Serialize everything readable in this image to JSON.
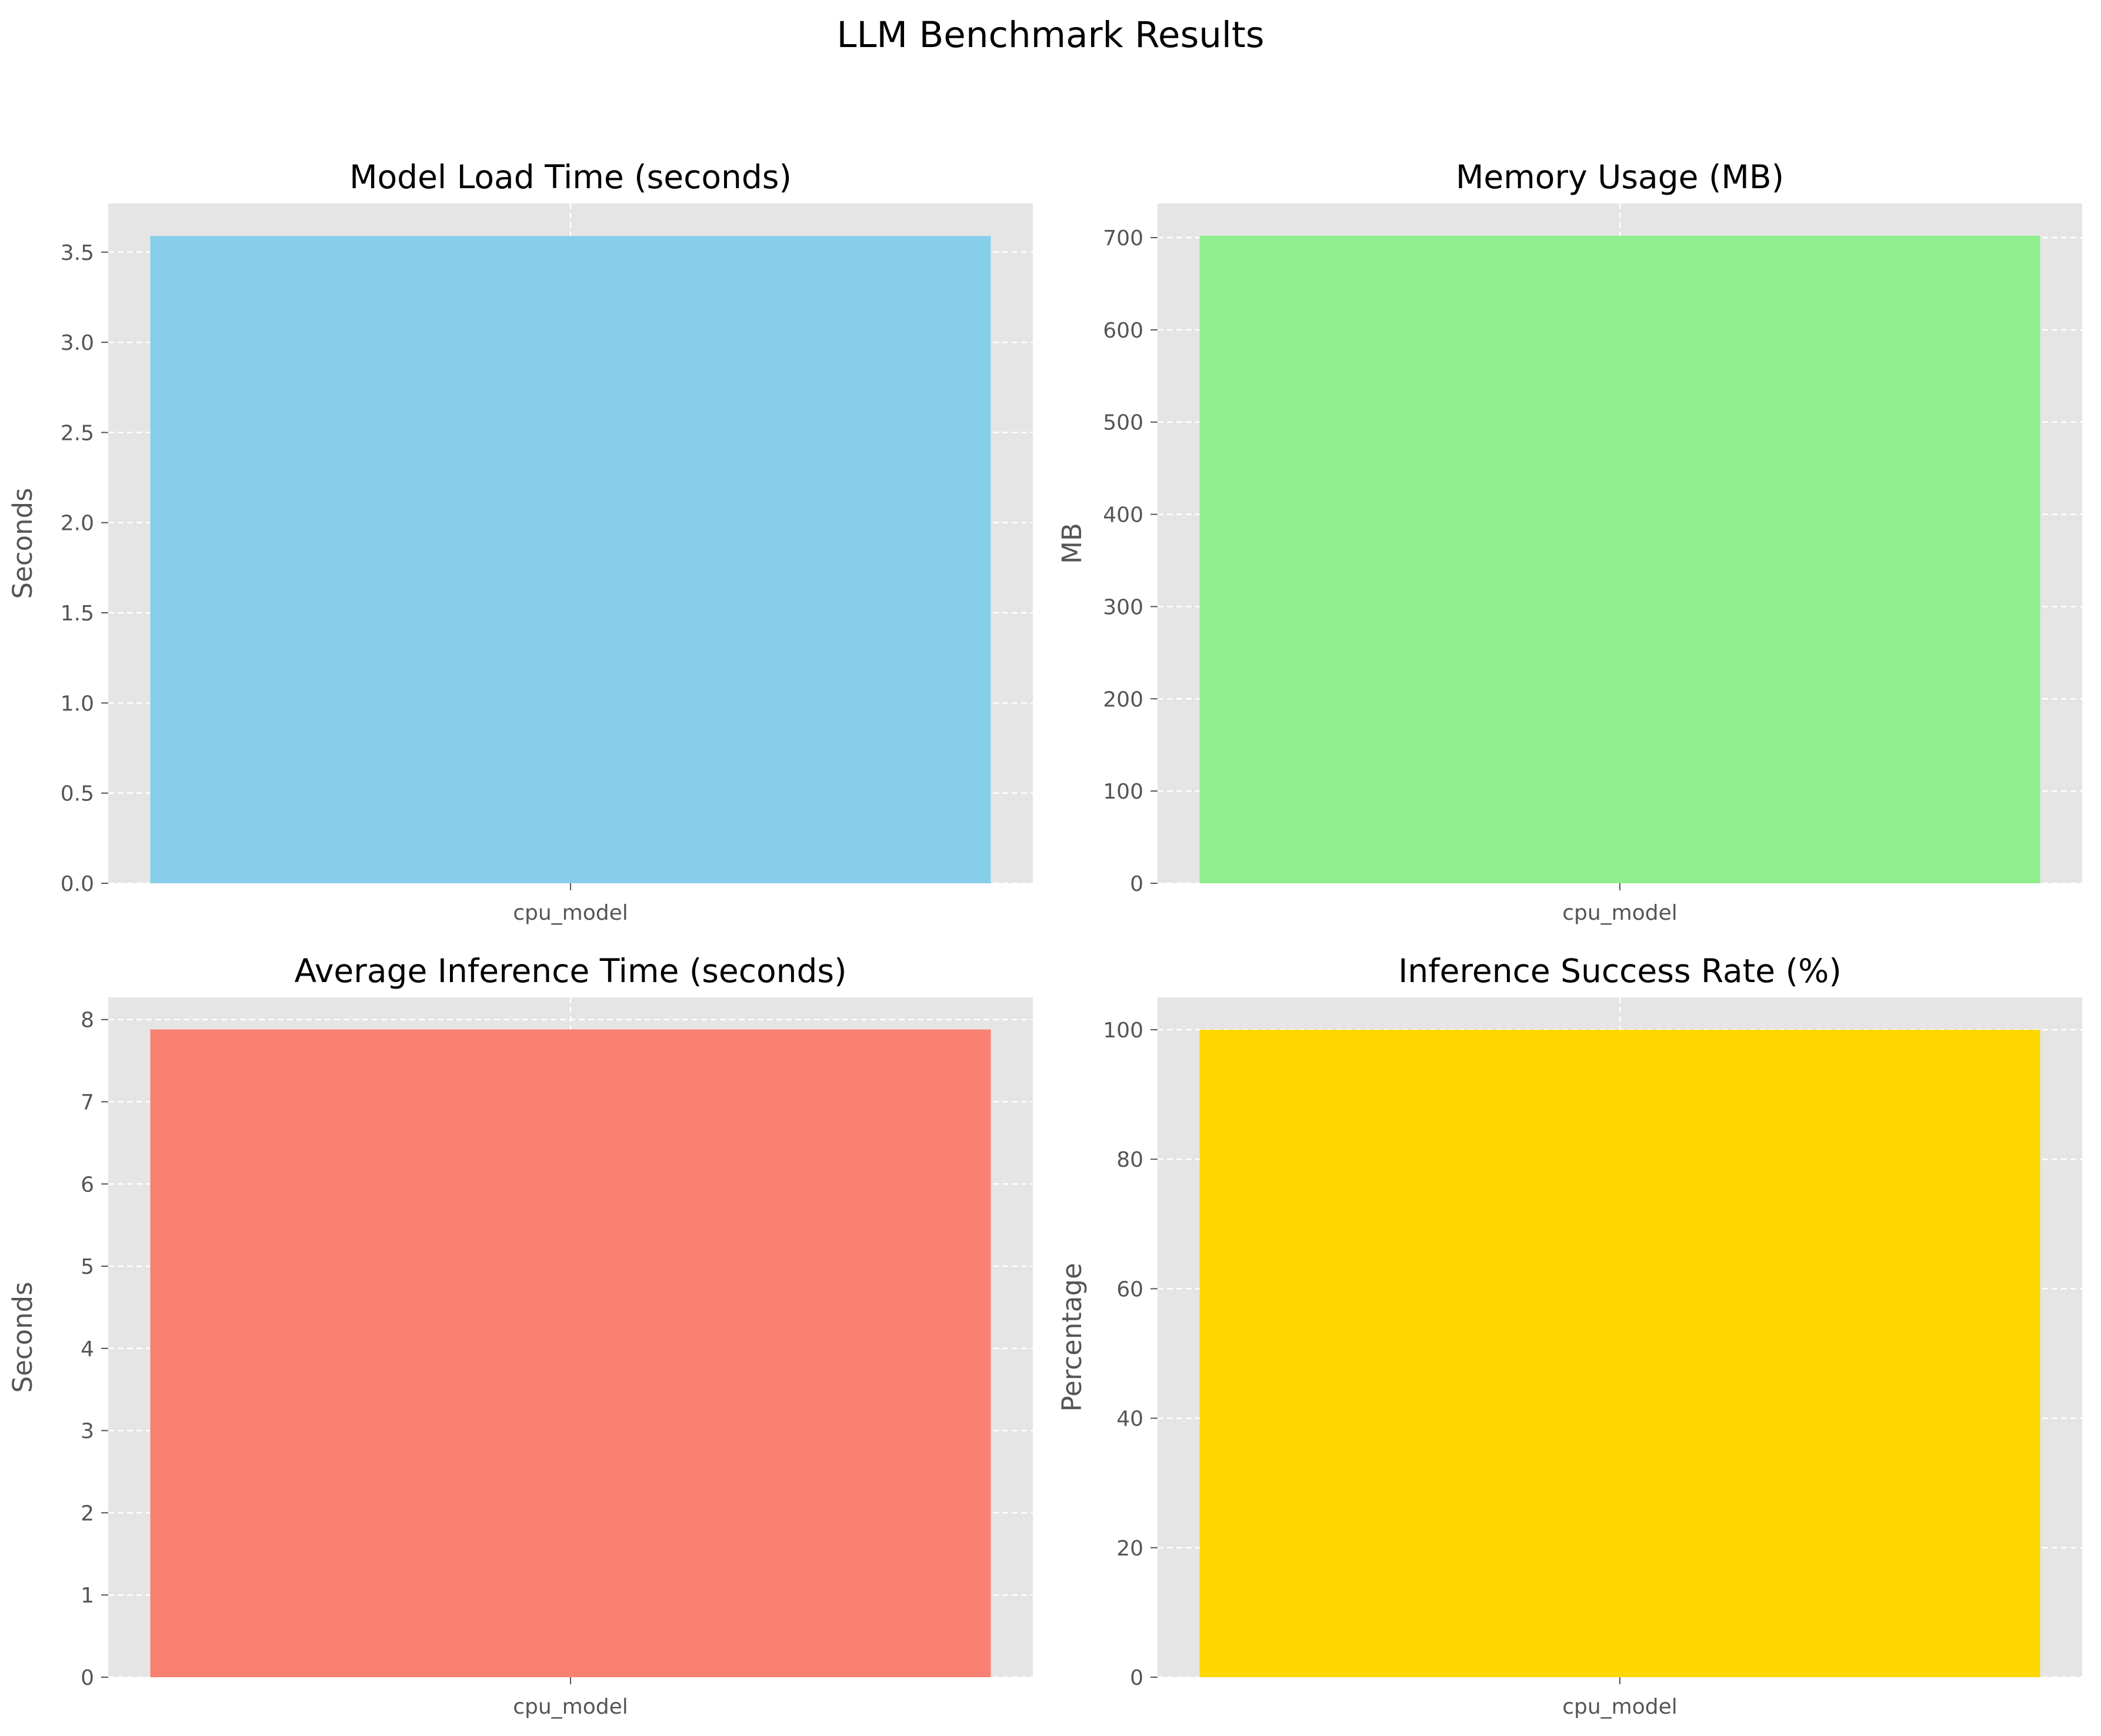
{
  "figure_title": "LLM Benchmark Results",
  "chart_data": [
    {
      "type": "bar",
      "title": "Model Load Time (seconds)",
      "xlabel": "",
      "ylabel": "Seconds",
      "categories": [
        "cpu_model"
      ],
      "values": [
        3.59
      ],
      "ylim": [
        0,
        3.77
      ],
      "yticks": [
        0,
        0.5,
        1.0,
        1.5,
        2.0,
        2.5,
        3.0,
        3.5
      ],
      "ytick_labels": [
        "0.0",
        "0.5",
        "1.0",
        "1.5",
        "2.0",
        "2.5",
        "3.0",
        "3.5"
      ],
      "color": "#87CEEB",
      "grid": true
    },
    {
      "type": "bar",
      "title": "Memory Usage (MB)",
      "xlabel": "",
      "ylabel": "MB",
      "categories": [
        "cpu_model"
      ],
      "values": [
        702
      ],
      "ylim": [
        0,
        737
      ],
      "yticks": [
        0,
        100,
        200,
        300,
        400,
        500,
        600,
        700
      ],
      "ytick_labels": [
        "0",
        "100",
        "200",
        "300",
        "400",
        "500",
        "600",
        "700"
      ],
      "color": "#90EE90",
      "grid": true
    },
    {
      "type": "bar",
      "title": "Average Inference Time (seconds)",
      "xlabel": "",
      "ylabel": "Seconds",
      "categories": [
        "cpu_model"
      ],
      "values": [
        7.88
      ],
      "ylim": [
        0,
        8.27
      ],
      "yticks": [
        0,
        1,
        2,
        3,
        4,
        5,
        6,
        7,
        8
      ],
      "ytick_labels": [
        "0",
        "1",
        "2",
        "3",
        "4",
        "5",
        "6",
        "7",
        "8"
      ],
      "color": "#FA8072",
      "grid": true
    },
    {
      "type": "bar",
      "title": "Inference Success Rate (%)",
      "xlabel": "",
      "ylabel": "Percentage",
      "categories": [
        "cpu_model"
      ],
      "values": [
        100
      ],
      "ylim": [
        0,
        105
      ],
      "yticks": [
        0,
        20,
        40,
        60,
        80,
        100
      ],
      "ytick_labels": [
        "0",
        "20",
        "40",
        "60",
        "80",
        "100"
      ],
      "color": "#FFD700",
      "grid": true
    }
  ]
}
